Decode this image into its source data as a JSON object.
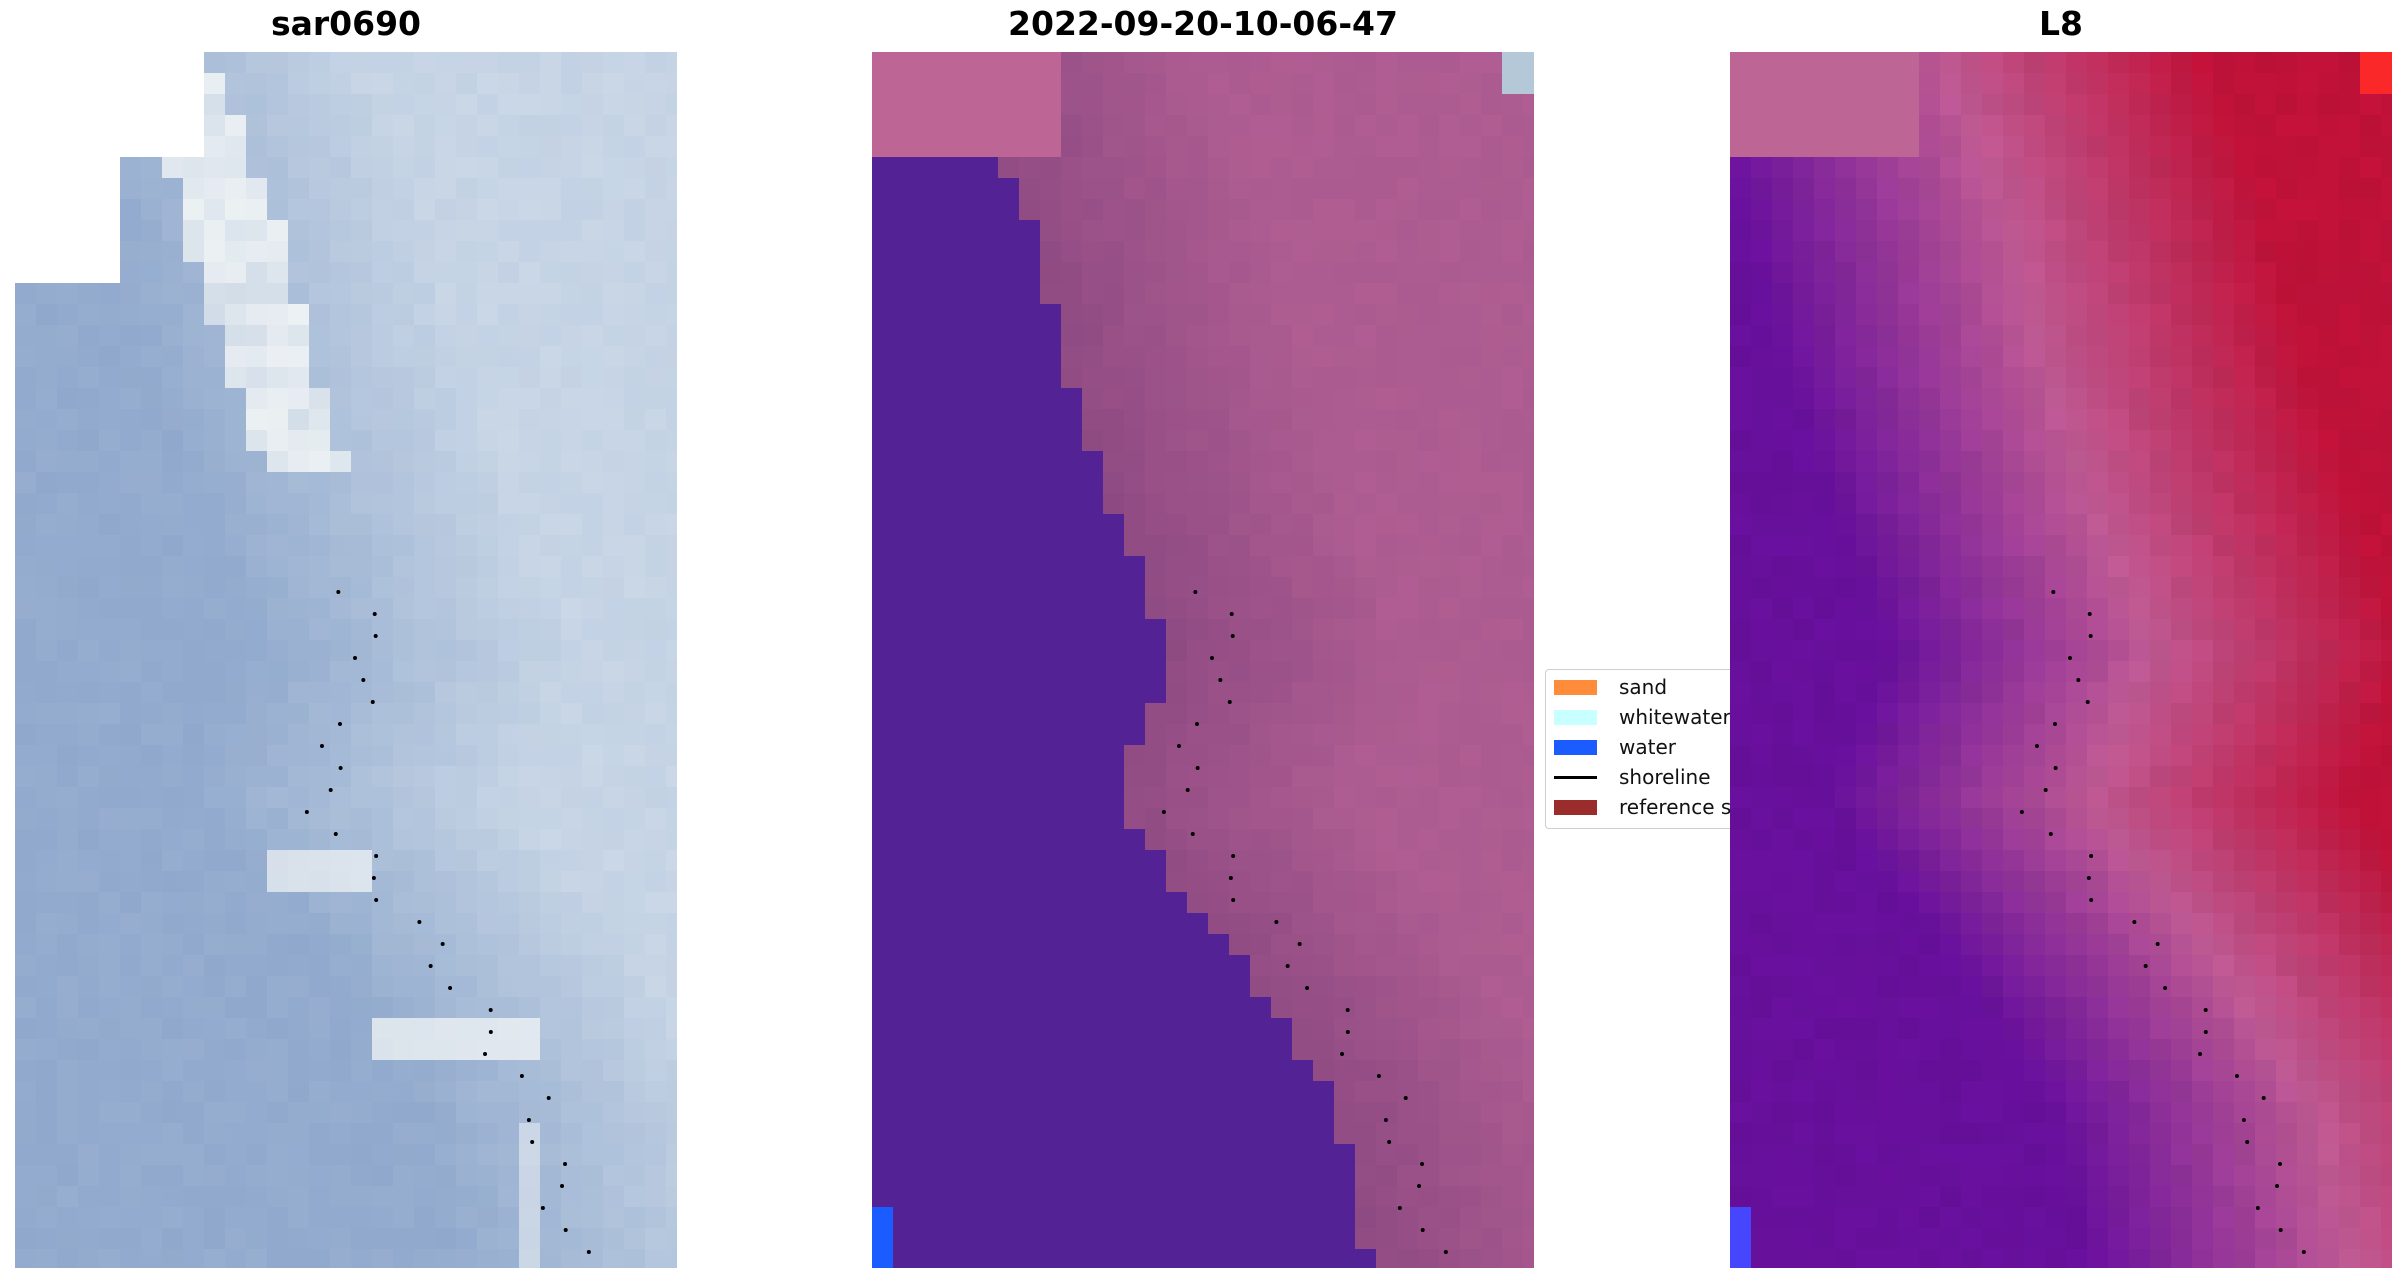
{
  "panels": [
    {
      "title": "sar0690",
      "style": "rgb"
    },
    {
      "title": "2022-09-20-10-06-47",
      "style": "classified"
    },
    {
      "title": "L8",
      "style": "index"
    }
  ],
  "legend": {
    "items": [
      {
        "label": "sand",
        "type": "patch",
        "color": "#ff8c3a"
      },
      {
        "label": "whitewater",
        "type": "patch",
        "color": "#c8ffff"
      },
      {
        "label": "water",
        "type": "patch",
        "color": "#1a5cff"
      },
      {
        "label": "shoreline",
        "type": "line",
        "color": "#000000"
      },
      {
        "label": "reference s",
        "type": "patch",
        "color": "#9b2c2c"
      }
    ]
  },
  "colors": {
    "sar_base": "#8fa8cc",
    "sar_light": "#c8d6e6",
    "sar_white": "#f3f6f6",
    "class_water": "#532396",
    "class_land": "#b25f93",
    "class_land_dark": "#8d4a82",
    "class_corner": "#bd6594",
    "index_red": "#c4123a",
    "index_purple": "#6a10a0",
    "index_pink": "#c35c97"
  }
}
